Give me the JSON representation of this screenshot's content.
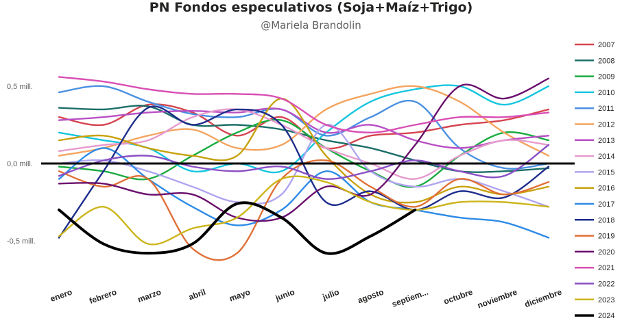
{
  "chart_data": {
    "type": "line",
    "title": "PN Fondos especulativos (Soja+Maíz+Trigo)",
    "subtitle": "@Mariela Brandolin",
    "xlabel": "",
    "ylabel": "",
    "x_categories": [
      "enero",
      "febrero",
      "marzo",
      "abril",
      "mayo",
      "junio",
      "julio",
      "agosto",
      "septiem...",
      "octubre",
      "noviembre",
      "diciembre"
    ],
    "y_ticks": [
      {
        "value": 0.5,
        "label": "0,5 mill."
      },
      {
        "value": 0,
        "label": "0,0 mill."
      },
      {
        "value": -0.5,
        "label": "-0,5 mill."
      }
    ],
    "ylim": [
      -0.72,
      0.62
    ],
    "legend_position": "right",
    "grid": false,
    "series": [
      {
        "name": "2007",
        "color": "#D64550",
        "values": [
          0.3,
          0.25,
          0.38,
          0.33,
          0.18,
          0.3,
          0.1,
          0.18,
          0.2,
          0.25,
          0.28,
          0.35
        ]
      },
      {
        "name": "2008",
        "color": "#1C6E68",
        "values": [
          0.36,
          0.35,
          0.37,
          0.25,
          0.25,
          0.22,
          0.15,
          0.1,
          0.02,
          -0.05,
          -0.05,
          -0.03
        ]
      },
      {
        "name": "2009",
        "color": "#1AAB40",
        "values": [
          -0.02,
          -0.05,
          -0.1,
          0.05,
          0.2,
          0.28,
          0.1,
          -0.05,
          -0.15,
          0.05,
          0.2,
          0.15
        ]
      },
      {
        "name": "2010",
        "color": "#15C6DE",
        "values": [
          0.2,
          0.15,
          0.1,
          -0.05,
          0.0,
          -0.05,
          0.2,
          0.4,
          0.48,
          0.5,
          0.38,
          0.5
        ]
      },
      {
        "name": "2011",
        "color": "#4A90E2",
        "values": [
          0.46,
          0.5,
          0.4,
          0.32,
          0.3,
          0.35,
          0.18,
          0.3,
          0.4,
          0.1,
          -0.03,
          0.0
        ]
      },
      {
        "name": "2012",
        "color": "#F4A460",
        "values": [
          0.05,
          0.1,
          0.18,
          0.22,
          0.1,
          0.12,
          0.35,
          0.45,
          0.5,
          0.4,
          0.2,
          0.05
        ]
      },
      {
        "name": "2013",
        "color": "#B84FC4",
        "values": [
          0.28,
          0.3,
          0.33,
          0.34,
          0.33,
          0.35,
          0.2,
          0.25,
          0.15,
          0.1,
          0.15,
          0.18
        ]
      },
      {
        "name": "2014",
        "color": "#E69ACD",
        "values": [
          0.08,
          0.12,
          0.15,
          0.3,
          0.35,
          0.25,
          0.1,
          0.0,
          -0.1,
          0.05,
          0.15,
          0.12
        ]
      },
      {
        "name": "2015",
        "color": "#B0A5F0",
        "values": [
          0.0,
          0.02,
          -0.05,
          -0.15,
          -0.25,
          -0.2,
          0.25,
          -0.05,
          -0.15,
          -0.1,
          -0.18,
          -0.28
        ]
      },
      {
        "name": "2016",
        "color": "#C7A20E",
        "values": [
          0.15,
          0.18,
          0.1,
          0.05,
          0.05,
          0.42,
          0.05,
          -0.2,
          -0.25,
          -0.15,
          -0.2,
          -0.15
        ]
      },
      {
        "name": "2017",
        "color": "#2E8BE6",
        "values": [
          -0.1,
          0.1,
          -0.1,
          -0.28,
          -0.4,
          -0.3,
          -0.05,
          -0.25,
          -0.3,
          -0.35,
          -0.38,
          -0.48
        ]
      },
      {
        "name": "2018",
        "color": "#1F2E8C",
        "values": [
          -0.48,
          -0.05,
          0.36,
          0.25,
          0.35,
          0.25,
          -0.25,
          -0.18,
          -0.3,
          -0.18,
          -0.22,
          -0.02
        ]
      },
      {
        "name": "2019",
        "color": "#E07038",
        "values": [
          -0.05,
          -0.15,
          -0.1,
          -0.55,
          -0.58,
          -0.1,
          0.02,
          -0.15,
          -0.28,
          -0.1,
          -0.2,
          -0.12
        ]
      },
      {
        "name": "2020",
        "color": "#6A0E6C",
        "values": [
          -0.13,
          -0.13,
          -0.2,
          -0.2,
          -0.35,
          -0.35,
          -0.15,
          -0.2,
          0.12,
          0.5,
          0.42,
          0.55
        ]
      },
      {
        "name": "2021",
        "color": "#D94FB4",
        "values": [
          0.56,
          0.53,
          0.48,
          0.45,
          0.45,
          0.42,
          0.25,
          0.2,
          0.25,
          0.3,
          0.3,
          0.33
        ]
      },
      {
        "name": "2022",
        "color": "#8A4FC4",
        "values": [
          -0.08,
          0.02,
          0.05,
          -0.02,
          -0.05,
          -0.02,
          -0.1,
          -0.05,
          0.02,
          -0.05,
          -0.08,
          0.12
        ]
      },
      {
        "name": "2023",
        "color": "#CCB51A",
        "values": [
          -0.47,
          -0.28,
          -0.52,
          -0.42,
          -0.35,
          -0.1,
          -0.12,
          -0.25,
          -0.3,
          -0.25,
          -0.25,
          -0.28
        ]
      },
      {
        "name": "2024",
        "color": "#000000",
        "values": [
          -0.3,
          -0.52,
          -0.58,
          -0.52,
          -0.26,
          -0.35,
          -0.58,
          -0.47,
          -0.3,
          null,
          null,
          null
        ]
      }
    ]
  }
}
